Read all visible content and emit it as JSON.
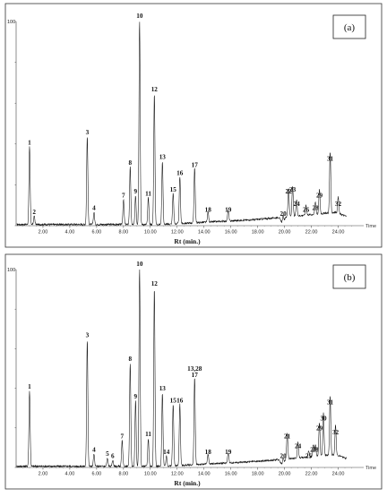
{
  "chart_data": [
    {
      "type": "line",
      "panel_label": "(a)",
      "xlabel": "Rt (min.)",
      "ylabel": "",
      "y_top_label": "100",
      "x_end_label": "Time",
      "xlim": [
        0,
        25.5
      ],
      "ylim": [
        0,
        100
      ],
      "xticks": [
        "2.00",
        "4.00",
        "6.00",
        "8.00",
        "10.00",
        "12.00",
        "14.00",
        "16.00",
        "18.00",
        "20.00",
        "22.00",
        "24.00"
      ],
      "peaks": [
        {
          "label": "1",
          "rt": 1.0,
          "height": 38
        },
        {
          "label": "2",
          "rt": 1.35,
          "height": 4
        },
        {
          "label": "3",
          "rt": 5.3,
          "height": 43
        },
        {
          "label": "4",
          "rt": 5.8,
          "height": 6
        },
        {
          "label": "7",
          "rt": 8.0,
          "height": 12
        },
        {
          "label": "8",
          "rt": 8.5,
          "height": 28
        },
        {
          "label": "9",
          "rt": 8.9,
          "height": 14
        },
        {
          "label": "10",
          "rt": 9.2,
          "height": 100
        },
        {
          "label": "11",
          "rt": 9.85,
          "height": 13
        },
        {
          "label": "12",
          "rt": 10.3,
          "height": 64
        },
        {
          "label": "13",
          "rt": 10.9,
          "height": 31
        },
        {
          "label": "15",
          "rt": 11.7,
          "height": 15
        },
        {
          "label": "16",
          "rt": 12.2,
          "height": 23
        },
        {
          "label": "17",
          "rt": 13.3,
          "height": 27
        },
        {
          "label": "18",
          "rt": 14.3,
          "height": 5
        },
        {
          "label": "19",
          "rt": 15.8,
          "height": 5
        },
        {
          "label": "20",
          "rt": 19.9,
          "height": 3
        },
        {
          "label": "22",
          "rt": 20.3,
          "height": 14
        },
        {
          "label": "23",
          "rt": 20.6,
          "height": 15
        },
        {
          "label": "24",
          "rt": 20.9,
          "height": 8
        },
        {
          "label": "26",
          "rt": 21.6,
          "height": 5
        },
        {
          "label": "28",
          "rt": 22.3,
          "height": 6
        },
        {
          "label": "29",
          "rt": 22.6,
          "height": 12
        },
        {
          "label": "31",
          "rt": 23.4,
          "height": 30
        },
        {
          "label": "32",
          "rt": 24.0,
          "height": 8
        }
      ]
    },
    {
      "type": "line",
      "panel_label": "(b)",
      "xlabel": "Rt (min.)",
      "ylabel": "",
      "y_top_label": "100",
      "x_end_label": "Time",
      "xlim": [
        0,
        25.5
      ],
      "ylim": [
        0,
        100
      ],
      "xticks": [
        "2.00",
        "4.00",
        "6.00",
        "8.00",
        "10.00",
        "12.00",
        "14.00",
        "16.00",
        "18.00",
        "20.00",
        "22.00",
        "24.00"
      ],
      "peaks": [
        {
          "label": "1",
          "rt": 1.0,
          "height": 38
        },
        {
          "label": "3",
          "rt": 5.3,
          "height": 64
        },
        {
          "label": "4",
          "rt": 5.8,
          "height": 6
        },
        {
          "label": "5",
          "rt": 6.8,
          "height": 4
        },
        {
          "label": "6",
          "rt": 7.2,
          "height": 3
        },
        {
          "label": "7",
          "rt": 7.9,
          "height": 13
        },
        {
          "label": "8",
          "rt": 8.5,
          "height": 52
        },
        {
          "label": "9",
          "rt": 8.9,
          "height": 33
        },
        {
          "label": "10",
          "rt": 9.2,
          "height": 100
        },
        {
          "label": "11",
          "rt": 9.85,
          "height": 14
        },
        {
          "label": "12",
          "rt": 10.3,
          "height": 90
        },
        {
          "label": "13",
          "rt": 10.9,
          "height": 37
        },
        {
          "label": "14",
          "rt": 11.2,
          "height": 5
        },
        {
          "label": "15",
          "rt": 11.7,
          "height": 31
        },
        {
          "label": "16",
          "rt": 12.2,
          "height": 31
        },
        {
          "label": "17",
          "rt": 13.3,
          "height": 44
        },
        {
          "label": "13,28",
          "rt": 13.3,
          "height": 44
        },
        {
          "label": "18",
          "rt": 14.3,
          "height": 5
        },
        {
          "label": "19",
          "rt": 15.8,
          "height": 5
        },
        {
          "label": "20",
          "rt": 19.9,
          "height": 3
        },
        {
          "label": "21",
          "rt": 20.2,
          "height": 13
        },
        {
          "label": "24",
          "rt": 21.0,
          "height": 8
        },
        {
          "label": "25",
          "rt": 21.8,
          "height": 3
        },
        {
          "label": "27",
          "rt": 22.15,
          "height": 6
        },
        {
          "label": "28",
          "rt": 22.3,
          "height": 6
        },
        {
          "label": "29",
          "rt": 22.6,
          "height": 17
        },
        {
          "label": "30",
          "rt": 22.9,
          "height": 22
        },
        {
          "label": "31",
          "rt": 23.4,
          "height": 30
        },
        {
          "label": "32",
          "rt": 23.8,
          "height": 15
        }
      ]
    }
  ]
}
